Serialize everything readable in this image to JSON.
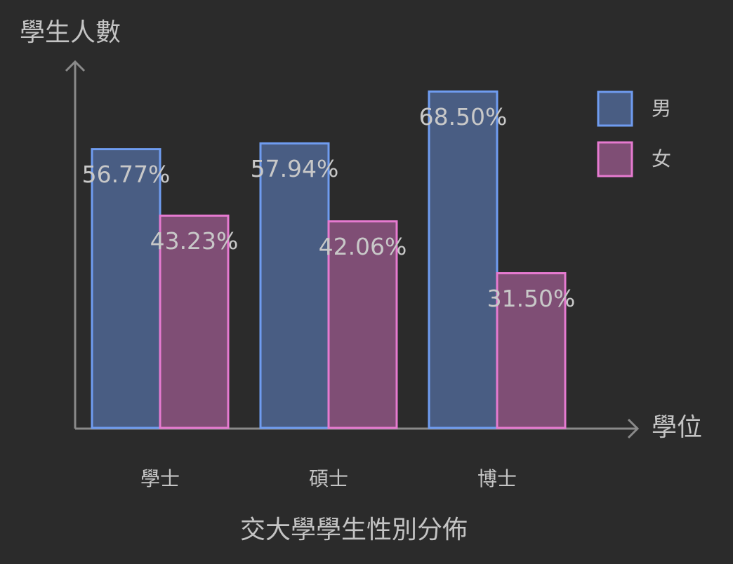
{
  "chart_data": {
    "type": "bar",
    "title": "交大學學生性別分佈",
    "x_label": "學位",
    "y_label": "學生人數",
    "categories": [
      "學士",
      "碩士",
      "博士"
    ],
    "series": [
      {
        "name": "男",
        "color": "#6f9cf0",
        "values": [
          56.77,
          57.94,
          68.5
        ],
        "value_labels": [
          "56.77%",
          "57.94%",
          "68.50%"
        ]
      },
      {
        "name": "女",
        "color": "#e67ad0",
        "values": [
          43.23,
          42.06,
          31.5
        ],
        "value_labels": [
          "43.23%",
          "42.06%",
          "31.50%"
        ]
      }
    ],
    "ylim": [
      0,
      75
    ],
    "legend": "top-right"
  }
}
